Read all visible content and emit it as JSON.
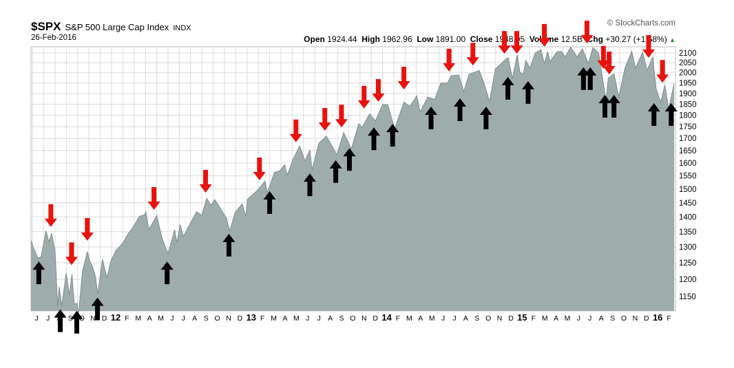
{
  "header": {
    "symbol": "$SPX",
    "name": "S&P 500 Large Cap Index",
    "exchange": "INDX",
    "date": "26-Feb-2016",
    "watermark": "© StockCharts.com",
    "open_label": "Open",
    "open": "1924.44",
    "high_label": "High",
    "high": "1962.96",
    "low_label": "Low",
    "low": "1891.00",
    "close_label": "Close",
    "close": "1948.05",
    "volume_label": "Volume",
    "volume": "12.5B",
    "chg_label": "Chg",
    "chg": "+30.27 (+1.58%)",
    "chg_direction": "up"
  },
  "chart_data": {
    "type": "area",
    "title": "$SPX S&P 500 Large Cap Index INDX",
    "yscale": "log",
    "ylim": [
      1100,
      2150
    ],
    "xlim": [
      "2011-05-25",
      "2016-02-26"
    ],
    "grid": true,
    "colors": {
      "fill": "#9eacac",
      "line": "#7f8e8e",
      "grid": "#dcdcdc",
      "top_arrow": "#e8120f",
      "bottom_arrow": "#000000"
    },
    "yticks": [
      1150,
      1200,
      1250,
      1300,
      1350,
      1400,
      1450,
      1500,
      1550,
      1600,
      1650,
      1700,
      1750,
      1800,
      1850,
      1900,
      1950,
      2000,
      2050,
      2100
    ],
    "xtick_start": "2011-06",
    "xticks": [
      "J",
      "J",
      "A",
      "S",
      "O",
      "N",
      "D",
      "12",
      "F",
      "M",
      "A",
      "M",
      "J",
      "J",
      "A",
      "S",
      "O",
      "N",
      "D",
      "13",
      "F",
      "M",
      "A",
      "M",
      "J",
      "J",
      "A",
      "S",
      "O",
      "N",
      "D",
      "14",
      "F",
      "M",
      "A",
      "M",
      "J",
      "J",
      "A",
      "S",
      "O",
      "N",
      "D",
      "15",
      "F",
      "M",
      "A",
      "M",
      "J",
      "J",
      "A",
      "S",
      "O",
      "N",
      "D",
      "16",
      "F"
    ],
    "series": [
      [
        "2011-05-25",
        1321
      ],
      [
        "2011-06-03",
        1300
      ],
      [
        "2011-06-15",
        1265
      ],
      [
        "2011-06-24",
        1268
      ],
      [
        "2011-07-07",
        1353
      ],
      [
        "2011-07-15",
        1316
      ],
      [
        "2011-07-22",
        1345
      ],
      [
        "2011-08-01",
        1287
      ],
      [
        "2011-08-08",
        1119
      ],
      [
        "2011-08-12",
        1178
      ],
      [
        "2011-08-19",
        1123
      ],
      [
        "2011-08-31",
        1219
      ],
      [
        "2011-09-09",
        1154
      ],
      [
        "2011-09-16",
        1216
      ],
      [
        "2011-09-22",
        1129
      ],
      [
        "2011-09-30",
        1131
      ],
      [
        "2011-10-03",
        1099
      ],
      [
        "2011-10-14",
        1224
      ],
      [
        "2011-10-27",
        1285
      ],
      [
        "2011-11-04",
        1253
      ],
      [
        "2011-11-10",
        1239
      ],
      [
        "2011-11-17",
        1216
      ],
      [
        "2011-11-25",
        1158
      ],
      [
        "2011-12-07",
        1261
      ],
      [
        "2011-12-19",
        1205
      ],
      [
        "2011-12-30",
        1257
      ],
      [
        "2012-01-13",
        1289
      ],
      [
        "2012-01-31",
        1312
      ],
      [
        "2012-02-15",
        1343
      ],
      [
        "2012-02-29",
        1366
      ],
      [
        "2012-03-15",
        1402
      ],
      [
        "2012-03-30",
        1408
      ],
      [
        "2012-04-02",
        1419
      ],
      [
        "2012-04-10",
        1358
      ],
      [
        "2012-04-20",
        1378
      ],
      [
        "2012-05-01",
        1405
      ],
      [
        "2012-05-15",
        1330
      ],
      [
        "2012-06-01",
        1278
      ],
      [
        "2012-06-19",
        1357
      ],
      [
        "2012-06-25",
        1313
      ],
      [
        "2012-07-03",
        1374
      ],
      [
        "2012-07-12",
        1334
      ],
      [
        "2012-07-31",
        1379
      ],
      [
        "2012-08-17",
        1418
      ],
      [
        "2012-08-31",
        1406
      ],
      [
        "2012-09-14",
        1466
      ],
      [
        "2012-09-25",
        1441
      ],
      [
        "2012-10-05",
        1461
      ],
      [
        "2012-10-19",
        1433
      ],
      [
        "2012-11-07",
        1394
      ],
      [
        "2012-11-15",
        1353
      ],
      [
        "2012-11-30",
        1416
      ],
      [
        "2012-12-18",
        1446
      ],
      [
        "2012-12-28",
        1402
      ],
      [
        "2013-01-02",
        1462
      ],
      [
        "2013-01-31",
        1498
      ],
      [
        "2013-02-19",
        1530
      ],
      [
        "2013-02-25",
        1487
      ],
      [
        "2013-03-14",
        1563
      ],
      [
        "2013-03-28",
        1569
      ],
      [
        "2013-04-11",
        1593
      ],
      [
        "2013-04-18",
        1552
      ],
      [
        "2013-05-03",
        1614
      ],
      [
        "2013-05-21",
        1669
      ],
      [
        "2013-06-05",
        1608
      ],
      [
        "2013-06-18",
        1651
      ],
      [
        "2013-06-24",
        1573
      ],
      [
        "2013-07-12",
        1680
      ],
      [
        "2013-08-02",
        1709
      ],
      [
        "2013-08-30",
        1633
      ],
      [
        "2013-09-18",
        1725
      ],
      [
        "2013-10-08",
        1656
      ],
      [
        "2013-10-28",
        1763
      ],
      [
        "2013-11-07",
        1747
      ],
      [
        "2013-11-27",
        1807
      ],
      [
        "2013-12-12",
        1775
      ],
      [
        "2013-12-31",
        1848
      ],
      [
        "2014-01-15",
        1848
      ],
      [
        "2014-02-03",
        1741
      ],
      [
        "2014-02-28",
        1859
      ],
      [
        "2014-03-14",
        1841
      ],
      [
        "2014-04-02",
        1890
      ],
      [
        "2014-04-11",
        1815
      ],
      [
        "2014-05-01",
        1883
      ],
      [
        "2014-05-20",
        1872
      ],
      [
        "2014-06-06",
        1949
      ],
      [
        "2014-06-24",
        1950
      ],
      [
        "2014-07-03",
        1985
      ],
      [
        "2014-07-24",
        1988
      ],
      [
        "2014-08-07",
        1909
      ],
      [
        "2014-08-21",
        1992
      ],
      [
        "2014-09-18",
        2011
      ],
      [
        "2014-10-01",
        1946
      ],
      [
        "2014-10-15",
        1862
      ],
      [
        "2014-10-31",
        2018
      ],
      [
        "2014-11-20",
        2052
      ],
      [
        "2014-11-28",
        2067
      ],
      [
        "2014-12-05",
        2075
      ],
      [
        "2014-12-16",
        1972
      ],
      [
        "2014-12-29",
        2090
      ],
      [
        "2015-01-06",
        2003
      ],
      [
        "2015-01-15",
        1992
      ],
      [
        "2015-01-22",
        2063
      ],
      [
        "2015-02-02",
        2021
      ],
      [
        "2015-02-17",
        2100
      ],
      [
        "2015-03-02",
        2117
      ],
      [
        "2015-03-11",
        2044
      ],
      [
        "2015-03-20",
        2108
      ],
      [
        "2015-03-26",
        2056
      ],
      [
        "2015-04-15",
        2107
      ],
      [
        "2015-04-27",
        2108
      ],
      [
        "2015-05-06",
        2080
      ],
      [
        "2015-05-21",
        2130
      ],
      [
        "2015-06-08",
        2080
      ],
      [
        "2015-06-22",
        2122
      ],
      [
        "2015-07-08",
        2046
      ],
      [
        "2015-07-20",
        2128
      ],
      [
        "2015-08-05",
        2100
      ],
      [
        "2015-08-25",
        1867
      ],
      [
        "2015-08-31",
        1972
      ],
      [
        "2015-09-16",
        1995
      ],
      [
        "2015-09-29",
        1884
      ],
      [
        "2015-10-15",
        2023
      ],
      [
        "2015-11-03",
        2109
      ],
      [
        "2015-11-13",
        2023
      ],
      [
        "2015-12-02",
        2103
      ],
      [
        "2015-12-14",
        2012
      ],
      [
        "2015-12-29",
        2078
      ],
      [
        "2016-01-08",
        1922
      ],
      [
        "2016-01-20",
        1859
      ],
      [
        "2016-02-01",
        1940
      ],
      [
        "2016-02-11",
        1829
      ],
      [
        "2016-02-26",
        1948
      ]
    ],
    "annotations": {
      "top_arrows_down": [
        [
          "2011-07-20",
          1366
        ],
        [
          "2011-09-15",
          1243
        ],
        [
          "2011-10-27",
          1320
        ],
        [
          "2012-04-24",
          1425
        ],
        [
          "2012-09-11",
          1487
        ],
        [
          "2013-02-04",
          1533
        ],
        [
          "2013-05-11",
          1684
        ],
        [
          "2013-07-28",
          1733
        ],
        [
          "2013-09-12",
          1747
        ],
        [
          "2013-11-12",
          1830
        ],
        [
          "2013-12-20",
          1861
        ],
        [
          "2014-02-28",
          1919
        ],
        [
          "2014-06-28",
          2006
        ],
        [
          "2014-09-01",
          2036
        ],
        [
          "2014-11-25",
          2096
        ],
        [
          "2014-12-28",
          2096
        ],
        [
          "2015-03-11",
          2133
        ],
        [
          "2015-07-04",
          2150
        ],
        [
          "2015-08-18",
          2020
        ],
        [
          "2015-09-03",
          1992
        ],
        [
          "2015-12-18",
          2075
        ],
        [
          "2016-01-25",
          1951
        ]
      ],
      "bottom_arrows_up": [
        [
          "2011-06-18",
          1254
        ],
        [
          "2011-08-15",
          1114
        ],
        [
          "2011-09-29",
          1110
        ],
        [
          "2011-11-24",
          1147
        ],
        [
          "2012-05-29",
          1254
        ],
        [
          "2012-11-13",
          1343
        ],
        [
          "2013-03-01",
          1492
        ],
        [
          "2013-06-18",
          1559
        ],
        [
          "2013-08-27",
          1611
        ],
        [
          "2013-10-03",
          1660
        ],
        [
          "2013-12-08",
          1747
        ],
        [
          "2014-01-28",
          1762
        ],
        [
          "2014-05-10",
          1839
        ],
        [
          "2014-07-27",
          1877
        ],
        [
          "2014-10-06",
          1839
        ],
        [
          "2014-12-04",
          1979
        ],
        [
          "2015-01-28",
          1959
        ],
        [
          "2015-06-25",
          2027
        ],
        [
          "2015-07-13",
          2027
        ],
        [
          "2015-08-22",
          1893
        ],
        [
          "2015-09-16",
          1893
        ],
        [
          "2016-01-02",
          1855
        ],
        [
          "2016-02-18",
          1855
        ]
      ]
    }
  }
}
